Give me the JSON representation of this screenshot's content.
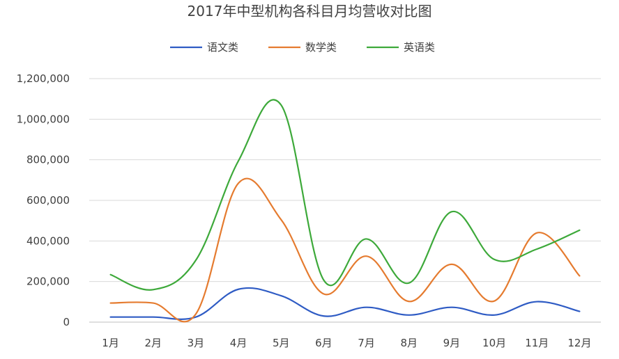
{
  "chart_data": {
    "type": "line",
    "title": "2017年中型机构各科目月均营收对比图",
    "xlabel": "",
    "ylabel": "",
    "categories": [
      "1月",
      "2月",
      "3月",
      "4月",
      "5月",
      "6月",
      "7月",
      "8月",
      "9月",
      "10月",
      "11月",
      "12月"
    ],
    "ylim": [
      0,
      1200000
    ],
    "yticks": [
      "0",
      "200,000",
      "400,000",
      "600,000",
      "800,000",
      "1,000,000",
      "1,200,000"
    ],
    "ytick_values": [
      0,
      200000,
      400000,
      600000,
      800000,
      1000000,
      1200000
    ],
    "grid": true,
    "legend_position": "top",
    "smooth": true,
    "series": [
      {
        "name": "语文类",
        "color": "#2E5BC4",
        "values": [
          25000,
          25000,
          25000,
          162000,
          130000,
          30000,
          73000,
          35000,
          73000,
          35000,
          101000,
          53000
        ]
      },
      {
        "name": "数学类",
        "color": "#E57B2F",
        "values": [
          94000,
          94000,
          40000,
          685000,
          505000,
          139000,
          325000,
          102000,
          285000,
          104000,
          440000,
          228000
        ]
      },
      {
        "name": "英语类",
        "color": "#3DA93A",
        "values": [
          234000,
          160000,
          305000,
          795000,
          1070000,
          207000,
          410000,
          193000,
          544000,
          309000,
          360000,
          453000
        ]
      }
    ]
  }
}
